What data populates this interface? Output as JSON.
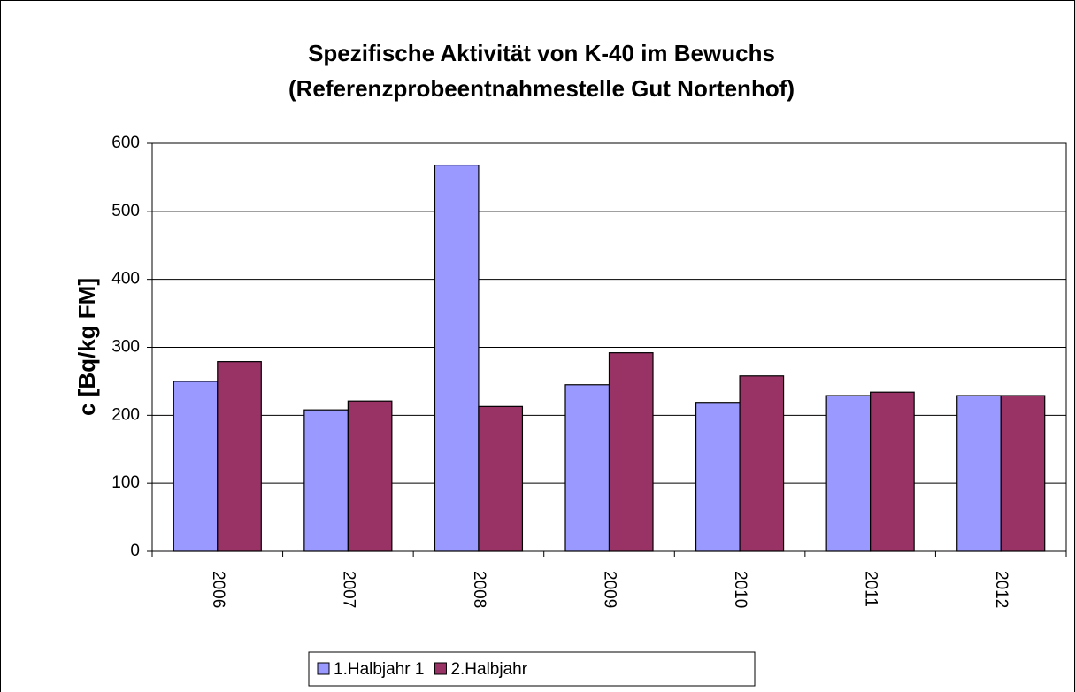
{
  "chart_data": {
    "type": "bar",
    "title": "Spezifische Aktivität von K-40 im Bewuchs",
    "subtitle": "(Referenzprobeentnahmestelle Gut Nortenhof)",
    "y_label": "c [Bq/kg FM]",
    "categories": [
      "2006",
      "2007",
      "2008",
      "2009",
      "2010",
      "2011",
      "2012"
    ],
    "series": [
      {
        "name": "1.Halbjahr 1",
        "color": "#9999ff",
        "values": [
          250,
          208,
          568,
          245,
          219,
          229,
          229
        ]
      },
      {
        "name": "2.Halbjahr",
        "color": "#993366",
        "values": [
          279,
          221,
          213,
          292,
          258,
          234,
          229
        ]
      }
    ],
    "ylim": [
      0,
      600
    ],
    "yticks": [
      0,
      100,
      200,
      300,
      400,
      500,
      600
    ],
    "grid": true,
    "legend": "bottom"
  }
}
